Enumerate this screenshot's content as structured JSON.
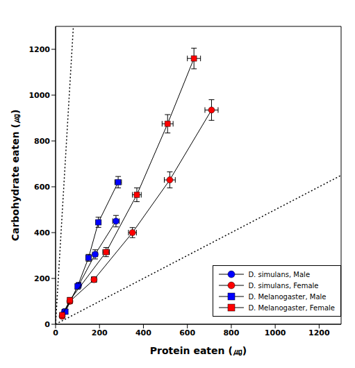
{
  "chart_data": {
    "type": "scatter",
    "x_label": "Protein eaten (㎍)",
    "y_label": "Carbohydrate eaten (㎍)",
    "xlim": [
      0,
      1300
    ],
    "ylim": [
      0,
      1300
    ],
    "xticks": [
      0,
      200,
      400,
      600,
      800,
      1000,
      1200
    ],
    "yticks": [
      0,
      200,
      400,
      600,
      800,
      1000,
      1200
    ],
    "legend": "lower right",
    "series": [
      {
        "name": "D. simulans, Male",
        "color": "#0000ff",
        "marker": "circle",
        "line_style": "solid",
        "x": [
          40,
          105,
          180,
          275
        ],
        "values": [
          55,
          170,
          305,
          450
        ],
        "x_err": [
          8,
          10,
          12,
          15
        ],
        "y_err": [
          10,
          12,
          20,
          25
        ]
      },
      {
        "name": "D. simulans, Female",
        "color": "#ff0000",
        "marker": "circle",
        "line_style": "solid",
        "x": [
          30,
          65,
          175,
          350,
          520,
          710
        ],
        "values": [
          35,
          100,
          195,
          400,
          630,
          935
        ],
        "x_err": [
          6,
          8,
          12,
          18,
          25,
          30
        ],
        "y_err": [
          8,
          10,
          12,
          22,
          35,
          45
        ]
      },
      {
        "name": "D. Melanogaster, Male",
        "color": "#0000ff",
        "marker": "square",
        "line_style": "solid",
        "x": [
          45,
          100,
          150,
          195,
          285
        ],
        "values": [
          55,
          165,
          290,
          445,
          620
        ],
        "x_err": [
          8,
          10,
          12,
          12,
          15
        ],
        "y_err": [
          10,
          12,
          15,
          22,
          25
        ]
      },
      {
        "name": "D. Melanogaster, Female",
        "color": "#ff0000",
        "marker": "square",
        "line_style": "solid",
        "x": [
          30,
          65,
          230,
          370,
          510,
          630
        ],
        "values": [
          40,
          105,
          315,
          565,
          875,
          1160
        ],
        "x_err": [
          6,
          8,
          15,
          20,
          25,
          30
        ],
        "y_err": [
          8,
          12,
          20,
          30,
          40,
          45
        ]
      }
    ],
    "reference_lines": [
      {
        "x": [
          0,
          81
        ],
        "values": [
          0,
          1300
        ],
        "line_style": "dotted"
      },
      {
        "x": [
          0,
          1300
        ],
        "values": [
          0,
          650
        ],
        "line_style": "dotted"
      }
    ]
  }
}
